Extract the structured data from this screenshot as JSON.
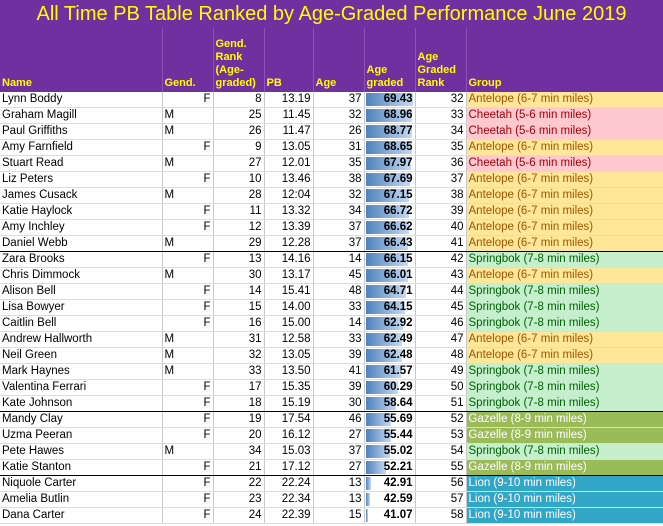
{
  "title": "All Time PB Table Ranked by Age-Graded Performance June 2019",
  "columns": {
    "name": "Name",
    "gender": "Gend.",
    "gender_rank": "Gend. Rank (Age-graded)",
    "pb": "PB",
    "age": "Age",
    "age_graded": "Age graded",
    "age_graded_rank": "Age Graded Rank",
    "group": "Group"
  },
  "group_colors": {
    "Antelope (6-7 min miles)": {
      "bg": "#ffe699",
      "fg": "#9c5700"
    },
    "Cheetah (5-6 min miles)": {
      "bg": "#ffc7ce",
      "fg": "#9c0006"
    },
    "Springbok (7-8 min miles)": {
      "bg": "#c6efce",
      "fg": "#006100"
    },
    "Gazelle (8-9 min miles)": {
      "bg": "#9bbb59",
      "fg": "#ffffff"
    },
    "Lion (9-10 min miles)": {
      "bg": "#31a6c6",
      "fg": "#ffffff"
    }
  },
  "bar_scale": {
    "min": 40,
    "max": 70
  },
  "rows": [
    {
      "name": "Lynn Boddy",
      "gender": "F",
      "gender_rank": "8",
      "pb": "13.19",
      "age": "37",
      "age_graded": "69.43",
      "ag_rank": "32",
      "group": "Antelope (6-7 min miles)"
    },
    {
      "name": "Graham Magill",
      "gender": "M",
      "gender_rank": "25",
      "pb": "11.45",
      "age": "32",
      "age_graded": "68.96",
      "ag_rank": "33",
      "group": "Cheetah (5-6 min miles)"
    },
    {
      "name": "Paul Griffiths",
      "gender": "M",
      "gender_rank": "26",
      "pb": "11.47",
      "age": "26",
      "age_graded": "68.77",
      "ag_rank": "34",
      "group": "Cheetah (5-6 min miles)"
    },
    {
      "name": "Amy Farnfield",
      "gender": "F",
      "gender_rank": "9",
      "pb": "13.05",
      "age": "31",
      "age_graded": "68.65",
      "ag_rank": "35",
      "group": "Antelope (6-7 min miles)"
    },
    {
      "name": "Stuart Read",
      "gender": "M",
      "gender_rank": "27",
      "pb": "12.01",
      "age": "35",
      "age_graded": "67.97",
      "ag_rank": "36",
      "group": "Cheetah (5-6 min miles)"
    },
    {
      "name": "Liz Peters",
      "gender": "F",
      "gender_rank": "10",
      "pb": "13.46",
      "age": "38",
      "age_graded": "67.69",
      "ag_rank": "37",
      "group": "Antelope (6-7 min miles)"
    },
    {
      "name": "James Cusack",
      "gender": "M",
      "gender_rank": "28",
      "pb": "12:04",
      "age": "32",
      "age_graded": "67.15",
      "ag_rank": "38",
      "group": "Antelope (6-7 min miles)"
    },
    {
      "name": "Katie Haylock",
      "gender": "F",
      "gender_rank": "11",
      "pb": "13.32",
      "age": "34",
      "age_graded": "66.72",
      "ag_rank": "39",
      "group": "Antelope (6-7 min miles)"
    },
    {
      "name": "Amy Inchley",
      "gender": "F",
      "gender_rank": "12",
      "pb": "13.39",
      "age": "37",
      "age_graded": "66.62",
      "ag_rank": "40",
      "group": "Antelope (6-7 min miles)"
    },
    {
      "name": "Daniel Webb",
      "gender": "M",
      "gender_rank": "29",
      "pb": "12.28",
      "age": "37",
      "age_graded": "66.43",
      "ag_rank": "41",
      "group": "Antelope (6-7 min miles)"
    },
    {
      "name": "Zara Brooks",
      "gender": "F",
      "gender_rank": "13",
      "pb": "14.16",
      "age": "14",
      "age_graded": "66.15",
      "ag_rank": "42",
      "group": "Springbok (7-8 min miles)"
    },
    {
      "name": "Chris Dimmock",
      "gender": "M",
      "gender_rank": "30",
      "pb": "13.17",
      "age": "45",
      "age_graded": "66.01",
      "ag_rank": "43",
      "group": "Antelope (6-7 min miles)"
    },
    {
      "name": "Alison Bell",
      "gender": "F",
      "gender_rank": "14",
      "pb": "15.41",
      "age": "48",
      "age_graded": "64.71",
      "ag_rank": "44",
      "group": "Springbok (7-8 min miles)"
    },
    {
      "name": "Lisa Bowyer",
      "gender": "F",
      "gender_rank": "15",
      "pb": "14.00",
      "age": "33",
      "age_graded": "64.15",
      "ag_rank": "45",
      "group": "Springbok (7-8 min miles)"
    },
    {
      "name": "Caitlin Bell",
      "gender": "F",
      "gender_rank": "16",
      "pb": "15.00",
      "age": "14",
      "age_graded": "62.92",
      "ag_rank": "46",
      "group": "Springbok (7-8 min miles)"
    },
    {
      "name": "Andrew Hallworth",
      "gender": "M",
      "gender_rank": "31",
      "pb": "12.58",
      "age": "33",
      "age_graded": "62.49",
      "ag_rank": "47",
      "group": "Antelope (6-7 min miles)"
    },
    {
      "name": "Neil Green",
      "gender": "M",
      "gender_rank": "32",
      "pb": "13.05",
      "age": "39",
      "age_graded": "62.48",
      "ag_rank": "48",
      "group": "Antelope (6-7 min miles)"
    },
    {
      "name": "Mark Haynes",
      "gender": "M",
      "gender_rank": "33",
      "pb": "13.50",
      "age": "41",
      "age_graded": "61.57",
      "ag_rank": "49",
      "group": "Springbok (7-8 min miles)"
    },
    {
      "name": "Valentina Ferrari",
      "gender": "F",
      "gender_rank": "17",
      "pb": "15.35",
      "age": "39",
      "age_graded": "60.29",
      "ag_rank": "50",
      "group": "Springbok (7-8 min miles)"
    },
    {
      "name": "Kate Johnson",
      "gender": "F",
      "gender_rank": "18",
      "pb": "15.19",
      "age": "30",
      "age_graded": "58.64",
      "ag_rank": "51",
      "group": "Springbok (7-8 min miles)"
    },
    {
      "name": "Mandy Clay",
      "gender": "F",
      "gender_rank": "19",
      "pb": "17.54",
      "age": "46",
      "age_graded": "55.69",
      "ag_rank": "52",
      "group": "Gazelle (8-9 min miles)"
    },
    {
      "name": "Uzma Peeran",
      "gender": "F",
      "gender_rank": "20",
      "pb": "16.12",
      "age": "27",
      "age_graded": "55.44",
      "ag_rank": "53",
      "group": "Gazelle (8-9 min miles)"
    },
    {
      "name": "Pete Hawes",
      "gender": "M",
      "gender_rank": "34",
      "pb": "15.03",
      "age": "37",
      "age_graded": "55.02",
      "ag_rank": "54",
      "group": "Springbok (7-8 min miles)"
    },
    {
      "name": "Katie Stanton",
      "gender": "F",
      "gender_rank": "21",
      "pb": "17.12",
      "age": "27",
      "age_graded": "52.21",
      "ag_rank": "55",
      "group": "Gazelle (8-9 min miles)"
    },
    {
      "name": "Niquole Carter",
      "gender": "F",
      "gender_rank": "22",
      "pb": "22.24",
      "age": "13",
      "age_graded": "42.91",
      "ag_rank": "56",
      "group": "Lion (9-10 min miles)"
    },
    {
      "name": "Amelia Butlin",
      "gender": "F",
      "gender_rank": "23",
      "pb": "22.34",
      "age": "13",
      "age_graded": "42.59",
      "ag_rank": "57",
      "group": "Lion (9-10 min miles)"
    },
    {
      "name": "Dana Carter",
      "gender": "F",
      "gender_rank": "24",
      "pb": "22.39",
      "age": "15",
      "age_graded": "41.07",
      "ag_rank": "58",
      "group": "Lion (9-10 min miles)"
    }
  ]
}
